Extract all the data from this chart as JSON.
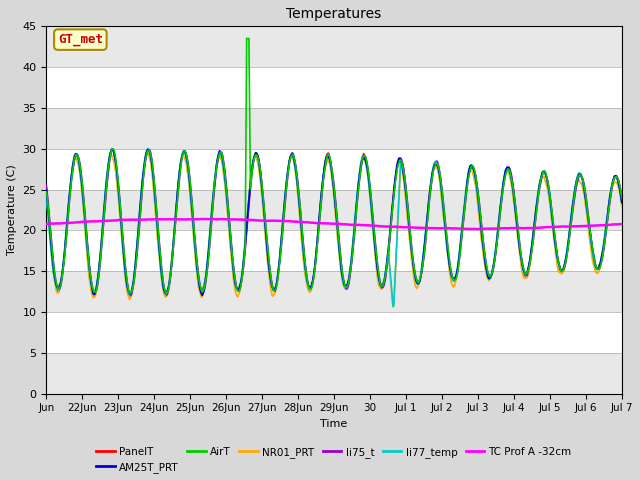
{
  "title": "Temperatures",
  "xlabel": "Time",
  "ylabel": "Temperature (C)",
  "ylim": [
    0,
    45
  ],
  "yticks": [
    0,
    5,
    10,
    15,
    20,
    25,
    30,
    35,
    40,
    45
  ],
  "bg_color": "#d8d8d8",
  "plot_bg_light": "#e8e8e8",
  "plot_bg_dark": "#d0d0d0",
  "annotation_text": "GT_met",
  "annotation_bg": "#ffffcc",
  "annotation_fg": "#cc0000",
  "annotation_border": "#aa8800",
  "series": {
    "PanelT": {
      "color": "#ff0000",
      "lw": 1.2
    },
    "AM25T_PRT": {
      "color": "#0000dd",
      "lw": 1.2
    },
    "AirT": {
      "color": "#00cc00",
      "lw": 1.2
    },
    "NR01_PRT": {
      "color": "#ffaa00",
      "lw": 1.2
    },
    "li75_t": {
      "color": "#9900cc",
      "lw": 1.2
    },
    "li77_temp": {
      "color": "#00cccc",
      "lw": 1.2
    },
    "TC Prof A -32cm": {
      "color": "#ff00ff",
      "lw": 1.8
    }
  },
  "xtick_labels": [
    "Jun",
    "22Jun",
    "23Jun",
    "24Jun",
    "25Jun",
    "26Jun",
    "27Jun",
    "28Jun",
    "29Jun",
    "30",
    "Jul 1",
    "Jul 2",
    "Jul 3",
    "Jul 4",
    "Jul 5",
    "Jul 6",
    "Jul 7"
  ],
  "xtick_positions": [
    0,
    1,
    2,
    3,
    4,
    5,
    6,
    7,
    8,
    9,
    10,
    11,
    12,
    13,
    14,
    15,
    16
  ],
  "figsize": [
    6.4,
    4.8
  ],
  "dpi": 100
}
